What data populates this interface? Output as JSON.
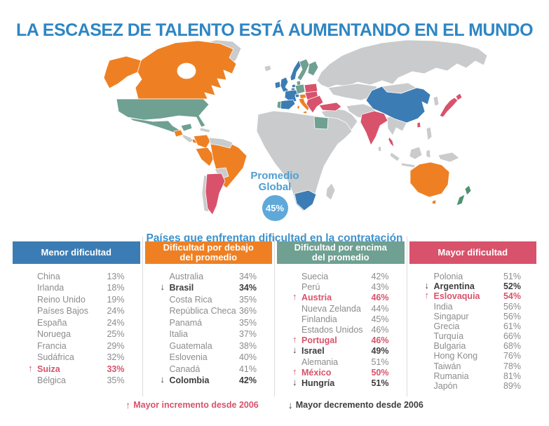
{
  "title": "LA ESCASEZ DE TALENTO ESTÁ AUMENTANDO EN EL MUNDO",
  "subtitle": "Países que enfrentan dificultad en la contratación",
  "map": {
    "promedio": {
      "line1": "Promedio",
      "line2": "Global",
      "value": "45%"
    },
    "palette": {
      "menor": "#3C7CB4",
      "debajo": "#EE8023",
      "encima": "#6FA091",
      "mayor": "#D8526B",
      "sin_datos": "#C9CBCD",
      "nueva_zelanda": "#4E9372"
    }
  },
  "symbols": {
    "up": "↑",
    "down": "↓"
  },
  "chart_data": {
    "type": "choropleth_map_with_ranked_tables",
    "title": "LA ESCASEZ DE TALENTO ESTÁ AUMENTANDO EN EL MUNDO",
    "subtitle": "Países que enfrentan dificultad en la contratación",
    "global_average": "45%",
    "categories": [
      {
        "header": "Menor dificultad",
        "color": "#3C7CB4",
        "rows": [
          {
            "country": "China",
            "value": "13%"
          },
          {
            "country": "Irlanda",
            "value": "18%"
          },
          {
            "country": "Reino Unido",
            "value": "19%"
          },
          {
            "country": "Países Bajos",
            "value": "24%"
          },
          {
            "country": "España",
            "value": "24%"
          },
          {
            "country": "Noruega",
            "value": "25%"
          },
          {
            "country": "Francia",
            "value": "29%"
          },
          {
            "country": "Sudáfrica",
            "value": "32%"
          },
          {
            "country": "Suiza",
            "value": "33%",
            "trend": "up"
          },
          {
            "country": "Bélgica",
            "value": "35%"
          }
        ]
      },
      {
        "header": "Dificultad por debajo\ndel promedio",
        "color": "#EE8023",
        "rows": [
          {
            "country": "Australia",
            "value": "34%"
          },
          {
            "country": "Brasil",
            "value": "34%",
            "trend": "down"
          },
          {
            "country": "Costa Rica",
            "value": "35%"
          },
          {
            "country": "República Checa",
            "value": "36%"
          },
          {
            "country": "Panamá",
            "value": "35%"
          },
          {
            "country": "Italia",
            "value": "37%"
          },
          {
            "country": "Guatemala",
            "value": "38%"
          },
          {
            "country": "Eslovenia",
            "value": "40%"
          },
          {
            "country": "Canadá",
            "value": "41%"
          },
          {
            "country": "Colombia",
            "value": "42%",
            "trend": "down"
          }
        ]
      },
      {
        "header": "Dificultad por encima\ndel promedio",
        "color": "#6FA091",
        "rows": [
          {
            "country": "Suecia",
            "value": "42%"
          },
          {
            "country": "Perú",
            "value": "43%"
          },
          {
            "country": "Austria",
            "value": "46%",
            "trend": "up"
          },
          {
            "country": "Nueva Zelanda",
            "value": "44%"
          },
          {
            "country": "Finlandia",
            "value": "45%"
          },
          {
            "country": "Estados Unidos",
            "value": "46%"
          },
          {
            "country": "Portugal",
            "value": "46%",
            "trend": "up"
          },
          {
            "country": "Israel",
            "value": "49%",
            "trend": "down"
          },
          {
            "country": "Alemania",
            "value": "51%"
          },
          {
            "country": "México",
            "value": "50%",
            "trend": "up"
          },
          {
            "country": "Hungría",
            "value": "51%",
            "trend": "down"
          }
        ]
      },
      {
        "header": "Mayor dificultad",
        "color": "#D8526B",
        "rows": [
          {
            "country": "Polonia",
            "value": "51%"
          },
          {
            "country": "Argentina",
            "value": "52%",
            "trend": "down"
          },
          {
            "country": "Eslovaquia",
            "value": "54%",
            "trend": "up"
          },
          {
            "country": "India",
            "value": "56%"
          },
          {
            "country": "Singapur",
            "value": "56%"
          },
          {
            "country": "Grecia",
            "value": "61%"
          },
          {
            "country": "Turquía",
            "value": "66%"
          },
          {
            "country": "Bulgaria",
            "value": "68%"
          },
          {
            "country": "Hong Kong",
            "value": "76%"
          },
          {
            "country": "Taiwán",
            "value": "78%"
          },
          {
            "country": "Rumania",
            "value": "81%"
          },
          {
            "country": "Japón",
            "value": "89%"
          }
        ]
      }
    ]
  },
  "footer": {
    "increase_label": "Mayor incremento desde 2006",
    "decrease_label": "Mayor decremento desde 2006"
  }
}
